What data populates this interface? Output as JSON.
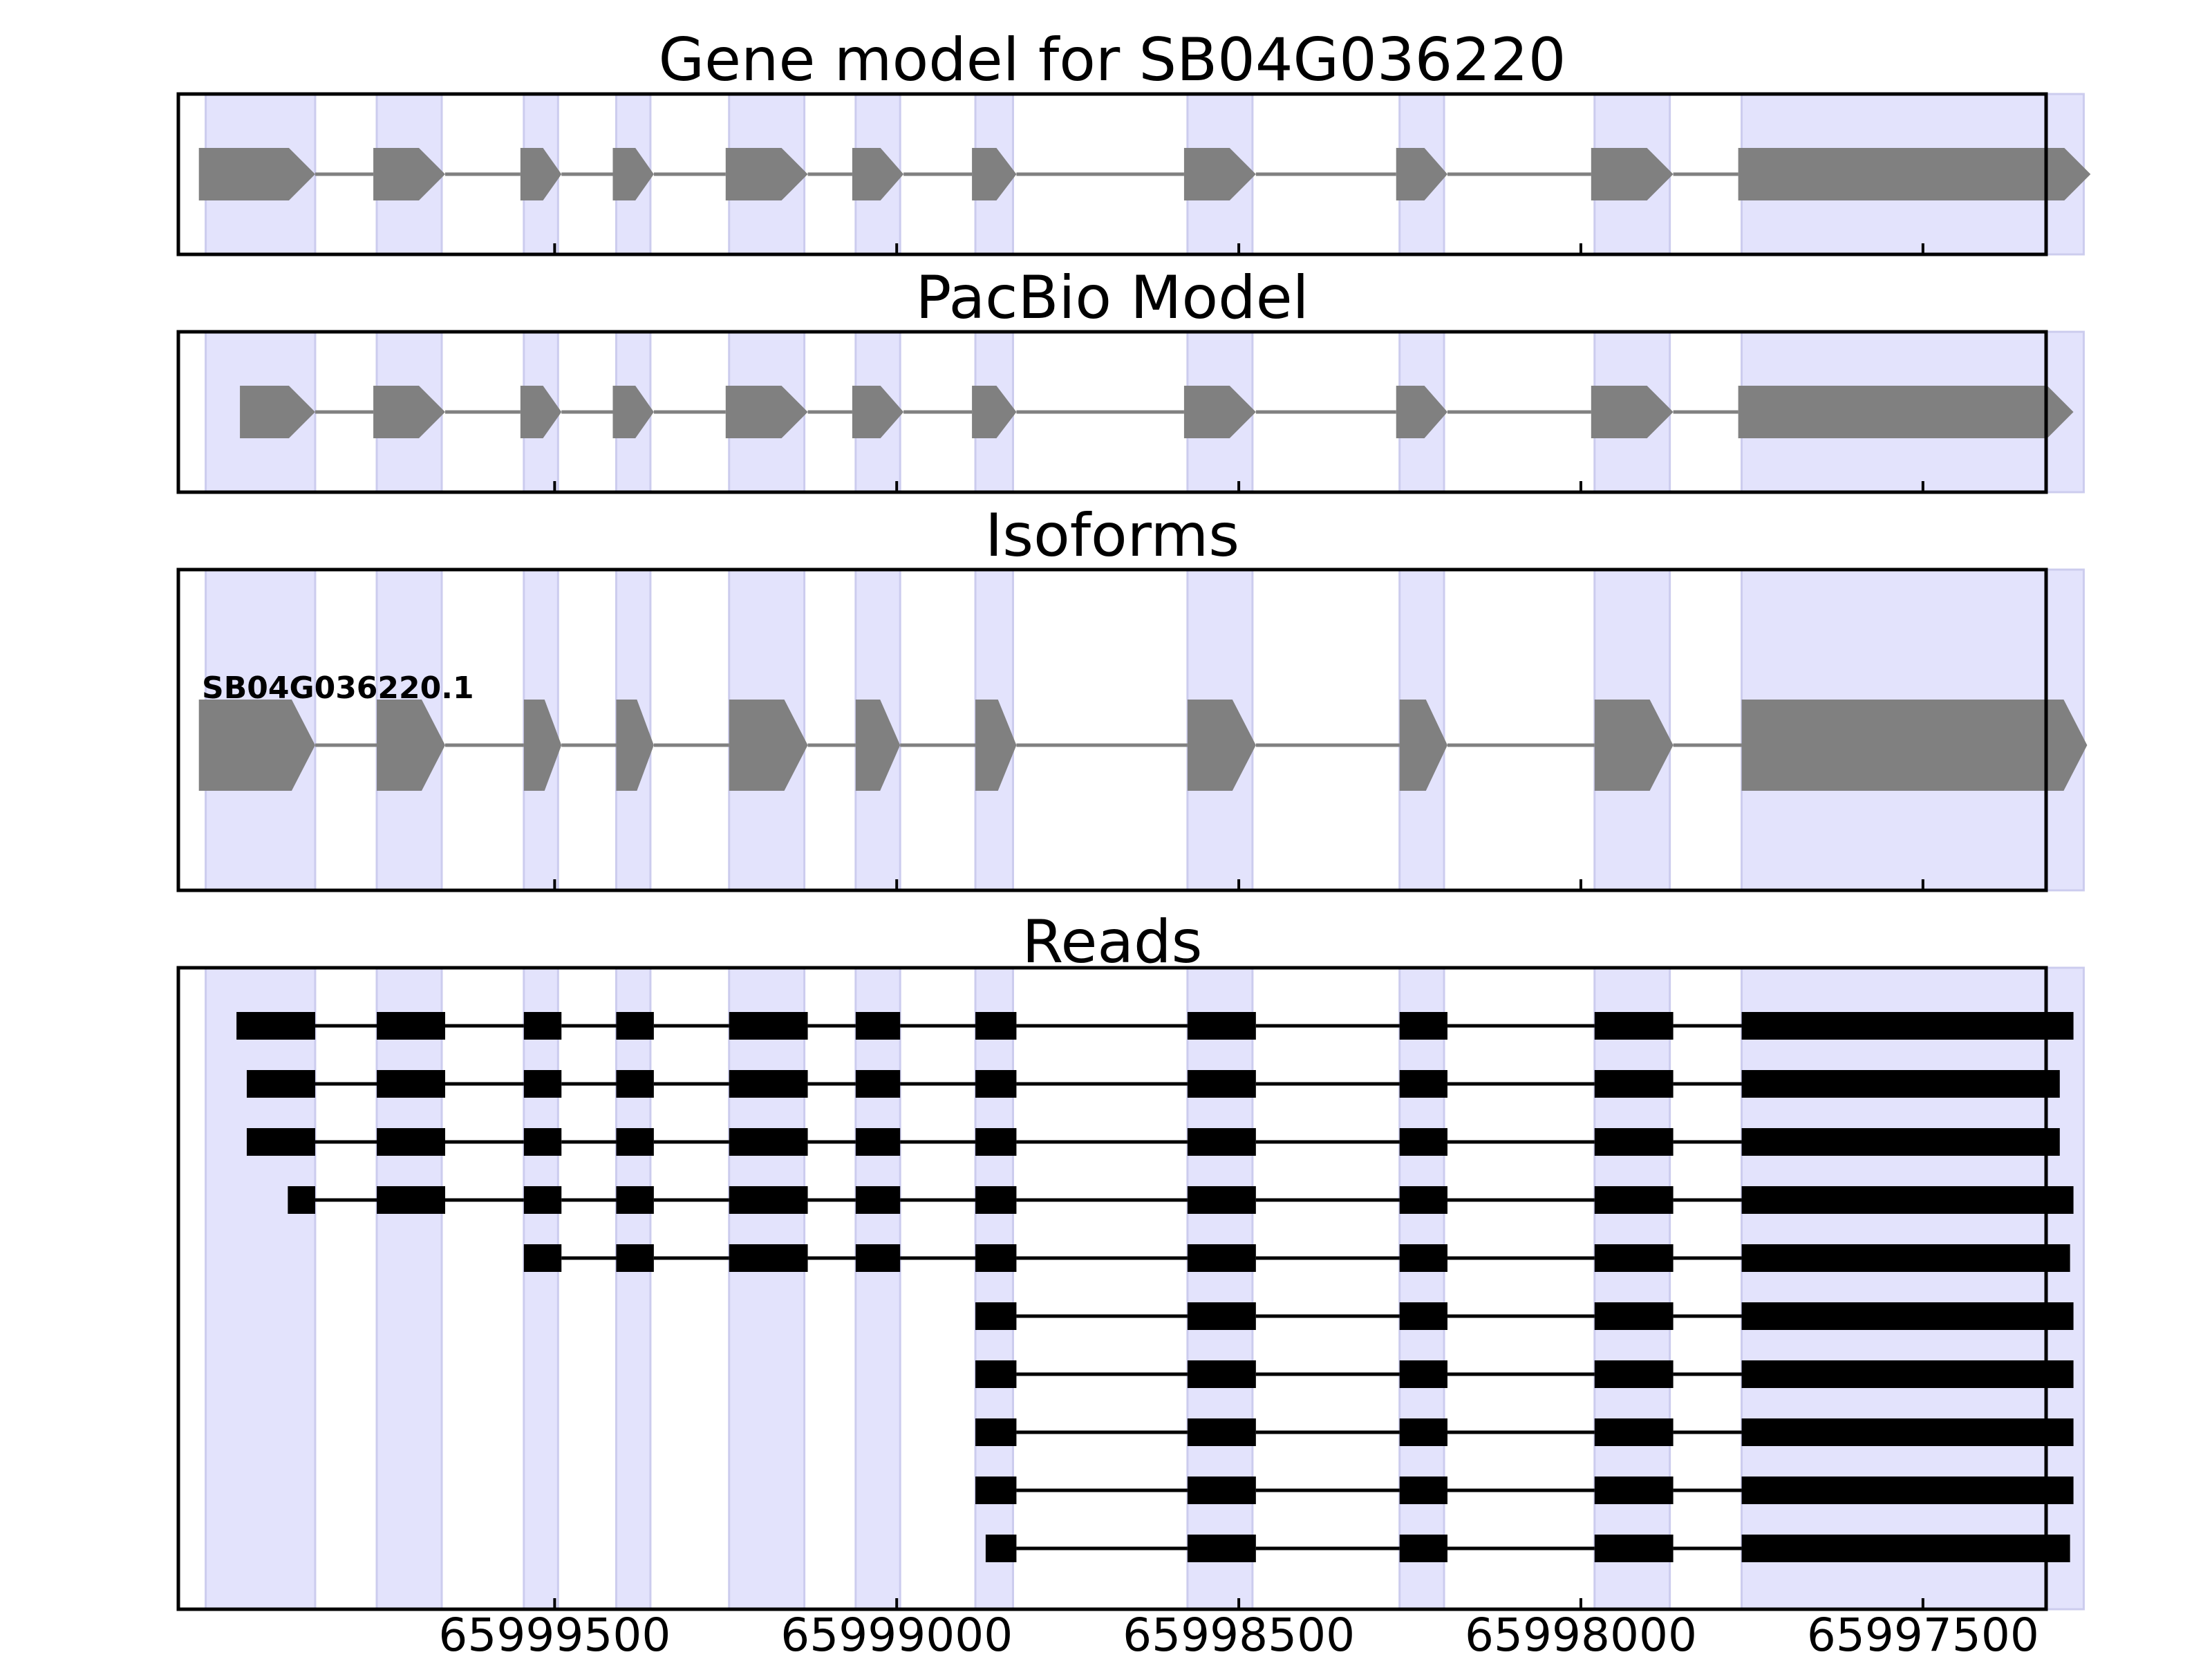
{
  "colors": {
    "shade": "#e3e3fc",
    "shade_edge": "#ccccee",
    "model": "#808080",
    "read": "#000000",
    "frame": "#000000"
  },
  "chart_data": {
    "type": "gene-structure",
    "xaxis": {
      "direction": "reversed",
      "range": [
        66000050,
        65997320
      ],
      "ticks": [
        65999500,
        65999000,
        65998500,
        65998000,
        65997500
      ],
      "tick_labels": [
        "65999500",
        "65999000",
        "65998500",
        "65998000",
        "65997500"
      ]
    },
    "shaded_exons": [
      [
        66000010,
        65999850
      ],
      [
        65999760,
        65999665
      ],
      [
        65999545,
        65999495
      ],
      [
        65999410,
        65999360
      ],
      [
        65999245,
        65999135
      ],
      [
        65999060,
        65998995
      ],
      [
        65998885,
        65998830
      ],
      [
        65998575,
        65998480
      ],
      [
        65998265,
        65998200
      ],
      [
        65997980,
        65997870
      ],
      [
        65997765,
        65997265
      ]
    ],
    "panels": [
      {
        "title": "Gene model for SB04G036220",
        "kind": "model",
        "exons": [
          [
            66000020,
            65999850
          ],
          [
            65999765,
            65999660
          ],
          [
            65999550,
            65999490
          ],
          [
            65999415,
            65999355
          ],
          [
            65999250,
            65999130
          ],
          [
            65999065,
            65998990
          ],
          [
            65998890,
            65998825
          ],
          [
            65998580,
            65998475
          ],
          [
            65998270,
            65998195
          ],
          [
            65997985,
            65997865
          ],
          [
            65997770,
            65997255
          ]
        ]
      },
      {
        "title": "PacBio Model",
        "kind": "model",
        "exons": [
          [
            65999960,
            65999850
          ],
          [
            65999765,
            65999660
          ],
          [
            65999550,
            65999490
          ],
          [
            65999415,
            65999355
          ],
          [
            65999250,
            65999130
          ],
          [
            65999065,
            65998990
          ],
          [
            65998890,
            65998825
          ],
          [
            65998580,
            65998475
          ],
          [
            65998270,
            65998195
          ],
          [
            65997985,
            65997865
          ],
          [
            65997770,
            65997280
          ]
        ]
      },
      {
        "title": "Isoforms",
        "kind": "isoform",
        "isoform_label": "SB04G036220.1",
        "exons": [
          [
            66000020,
            65999850
          ],
          [
            65999760,
            65999660
          ],
          [
            65999545,
            65999490
          ],
          [
            65999410,
            65999355
          ],
          [
            65999245,
            65999130
          ],
          [
            65999060,
            65998995
          ],
          [
            65998885,
            65998825
          ],
          [
            65998575,
            65998475
          ],
          [
            65998265,
            65998195
          ],
          [
            65997980,
            65997865
          ],
          [
            65997765,
            65997260
          ]
        ]
      },
      {
        "title": "Reads",
        "kind": "reads",
        "reads": [
          [
            [
              65999965,
              65999850
            ],
            [
              65999760,
              65999660
            ],
            [
              65999545,
              65999490
            ],
            [
              65999410,
              65999355
            ],
            [
              65999245,
              65999130
            ],
            [
              65999060,
              65998995
            ],
            [
              65998885,
              65998825
            ],
            [
              65998575,
              65998475
            ],
            [
              65998265,
              65998195
            ],
            [
              65997980,
              65997865
            ],
            [
              65997765,
              65997280
            ]
          ],
          [
            [
              65999950,
              65999850
            ],
            [
              65999760,
              65999660
            ],
            [
              65999545,
              65999490
            ],
            [
              65999410,
              65999355
            ],
            [
              65999245,
              65999130
            ],
            [
              65999060,
              65998995
            ],
            [
              65998885,
              65998825
            ],
            [
              65998575,
              65998475
            ],
            [
              65998265,
              65998195
            ],
            [
              65997980,
              65997865
            ],
            [
              65997765,
              65997300
            ]
          ],
          [
            [
              65999950,
              65999850
            ],
            [
              65999760,
              65999660
            ],
            [
              65999545,
              65999490
            ],
            [
              65999410,
              65999355
            ],
            [
              65999245,
              65999130
            ],
            [
              65999060,
              65998995
            ],
            [
              65998885,
              65998825
            ],
            [
              65998575,
              65998475
            ],
            [
              65998265,
              65998195
            ],
            [
              65997980,
              65997865
            ],
            [
              65997765,
              65997300
            ]
          ],
          [
            [
              65999890,
              65999850
            ],
            [
              65999760,
              65999660
            ],
            [
              65999545,
              65999490
            ],
            [
              65999410,
              65999355
            ],
            [
              65999245,
              65999130
            ],
            [
              65999060,
              65998995
            ],
            [
              65998885,
              65998825
            ],
            [
              65998575,
              65998475
            ],
            [
              65998265,
              65998195
            ],
            [
              65997980,
              65997865
            ],
            [
              65997765,
              65997280
            ]
          ],
          [
            [
              65999545,
              65999490
            ],
            [
              65999410,
              65999355
            ],
            [
              65999245,
              65999130
            ],
            [
              65999060,
              65998995
            ],
            [
              65998885,
              65998825
            ],
            [
              65998575,
              65998475
            ],
            [
              65998265,
              65998195
            ],
            [
              65997980,
              65997865
            ],
            [
              65997765,
              65997285
            ]
          ],
          [
            [
              65998885,
              65998825
            ],
            [
              65998575,
              65998475
            ],
            [
              65998265,
              65998195
            ],
            [
              65997980,
              65997865
            ],
            [
              65997765,
              65997280
            ]
          ],
          [
            [
              65998885,
              65998825
            ],
            [
              65998575,
              65998475
            ],
            [
              65998265,
              65998195
            ],
            [
              65997980,
              65997865
            ],
            [
              65997765,
              65997280
            ]
          ],
          [
            [
              65998885,
              65998825
            ],
            [
              65998575,
              65998475
            ],
            [
              65998265,
              65998195
            ],
            [
              65997980,
              65997865
            ],
            [
              65997765,
              65997280
            ]
          ],
          [
            [
              65998885,
              65998825
            ],
            [
              65998575,
              65998475
            ],
            [
              65998265,
              65998195
            ],
            [
              65997980,
              65997865
            ],
            [
              65997765,
              65997280
            ]
          ],
          [
            [
              65998870,
              65998825
            ],
            [
              65998575,
              65998475
            ],
            [
              65998265,
              65998195
            ],
            [
              65997980,
              65997865
            ],
            [
              65997765,
              65997285
            ]
          ]
        ]
      }
    ]
  }
}
